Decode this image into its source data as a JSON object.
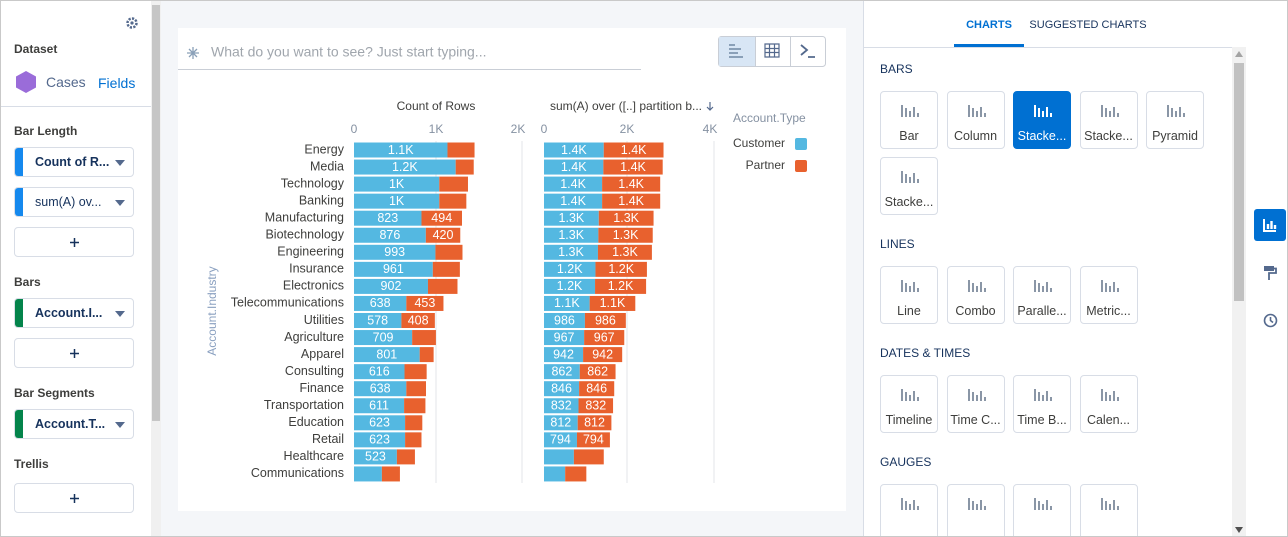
{
  "left_panel": {
    "dataset_label": "Dataset",
    "dataset": "Cases",
    "fields_link": "Fields",
    "sections": [
      {
        "title": "Bar Length",
        "fields": [
          "Count of R...",
          "sum(A) ov..."
        ]
      },
      {
        "title": "Bars",
        "fields": [
          "Account.I..."
        ]
      },
      {
        "title": "Bar Segments",
        "fields": [
          "Account.T..."
        ]
      },
      {
        "title": "Trellis",
        "fields": []
      }
    ]
  },
  "search": {
    "placeholder": "What do you want to see? Just start typing..."
  },
  "chart_data": [
    {
      "type": "bar",
      "orientation": "horizontal",
      "stacked": true,
      "title": "Count of Rows",
      "ylabel": "Account.Industry",
      "legend_title": "Account.Type",
      "legend_position": "right",
      "grid": true,
      "categories": [
        "Energy",
        "Media",
        "Technology",
        "Banking",
        "Manufacturing",
        "Biotechnology",
        "Engineering",
        "Insurance",
        "Electronics",
        "Telecommunications",
        "Utilities",
        "Agriculture",
        "Apparel",
        "Consulting",
        "Finance",
        "Transportation",
        "Education",
        "Retail",
        "Healthcare",
        "Communications"
      ],
      "xlim": [
        0,
        2000
      ],
      "xticks": [
        0,
        {
          "value": 1000,
          "label": "1K"
        },
        {
          "value": 2000,
          "label": "2K"
        }
      ],
      "series": [
        {
          "name": "Customer",
          "color": "#54b8e1",
          "values": [
            1140,
            1240,
            1040,
            1040,
            823,
            876,
            993,
            961,
            902,
            638,
            578,
            709,
            801,
            616,
            638,
            611,
            623,
            623,
            523,
            340
          ],
          "value_labels": [
            "1.1K",
            "1.2K",
            "1K",
            "1K",
            "823",
            "876",
            "993",
            "961",
            "902",
            "638",
            "578",
            "709",
            "801",
            "616",
            "638",
            "611",
            "623",
            "623",
            "523",
            null
          ]
        },
        {
          "name": "Partner",
          "color": "#e8612e",
          "values": [
            330,
            220,
            350,
            330,
            494,
            420,
            330,
            330,
            360,
            453,
            408,
            290,
            170,
            270,
            240,
            260,
            210,
            200,
            220,
            220
          ],
          "value_labels": [
            null,
            null,
            null,
            null,
            "494",
            "420",
            null,
            null,
            null,
            "453",
            "408",
            null,
            null,
            null,
            null,
            null,
            null,
            null,
            null,
            null
          ]
        }
      ]
    },
    {
      "type": "bar",
      "orientation": "horizontal",
      "stacked": true,
      "title": "sum(A) over ([..] partition b...",
      "grid": true,
      "xlim": [
        0,
        4000
      ],
      "xticks": [
        0,
        {
          "value": 2000,
          "label": "2K"
        },
        {
          "value": 4000,
          "label": "4K"
        }
      ],
      "series": [
        {
          "color": "#54b8e1",
          "values": [
            1440,
            1430,
            1400,
            1400,
            1320,
            1310,
            1300,
            1240,
            1230,
            1100,
            986,
            967,
            942,
            862,
            846,
            832,
            812,
            794,
            720,
            510
          ],
          "value_labels": [
            "1.4K",
            "1.4K",
            "1.4K",
            "1.4K",
            "1.3K",
            "1.3K",
            "1.3K",
            "1.2K",
            "1.2K",
            "1.1K",
            "986",
            "967",
            "942",
            "862",
            "846",
            "832",
            "812",
            "794",
            null,
            null
          ]
        },
        {
          "color": "#e8612e",
          "values": [
            1440,
            1430,
            1400,
            1400,
            1320,
            1310,
            1300,
            1240,
            1230,
            1100,
            986,
            967,
            942,
            862,
            846,
            832,
            812,
            794,
            720,
            510
          ],
          "value_labels": [
            "1.4K",
            "1.4K",
            "1.4K",
            "1.4K",
            "1.3K",
            "1.3K",
            "1.3K",
            "1.2K",
            "1.2K",
            "1.1K",
            "986",
            "967",
            "942",
            "862",
            "846",
            "832",
            "812",
            "794",
            null,
            null
          ]
        }
      ]
    }
  ],
  "right_panel": {
    "tabs": [
      "CHARTS",
      "SUGGESTED CHARTS"
    ],
    "active_tab": 0,
    "groups": [
      {
        "title": "BARS",
        "items": [
          "Bar",
          "Column",
          "Stacke...",
          "Stacke...",
          "Pyramid",
          "Stacke..."
        ],
        "selected": 2
      },
      {
        "title": "LINES",
        "items": [
          "Line",
          "Combo",
          "Paralle...",
          "Metric..."
        ]
      },
      {
        "title": "DATES & TIMES",
        "items": [
          "Timeline",
          "Time C...",
          "Time B...",
          "Calen..."
        ]
      },
      {
        "title": "GAUGES",
        "items": []
      }
    ]
  }
}
